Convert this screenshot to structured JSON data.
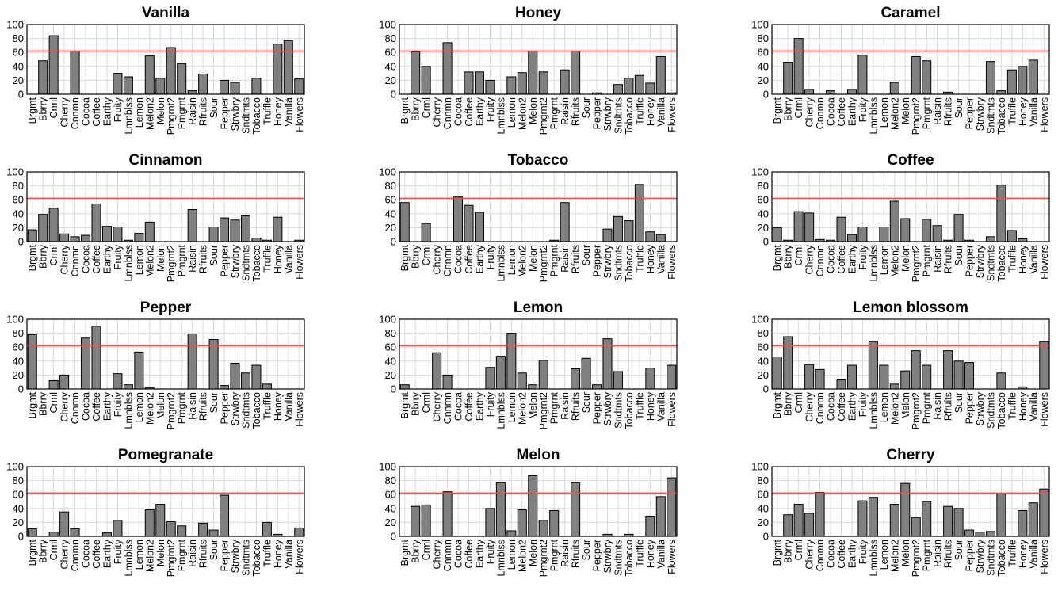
{
  "chart_data": {
    "type": "bar",
    "categories": [
      "Brgmt",
      "Bbrry",
      "Crml",
      "Cherry",
      "Cnnmn",
      "Cocoa",
      "Coffee",
      "Earthy",
      "Fruity",
      "Lmnblss",
      "Lemon",
      "Melon2",
      "Melon",
      "Pmgrnt2",
      "Pmgrnt",
      "Raisin",
      "Rfruits",
      "Sour",
      "Pepper",
      "Strwbry",
      "Sndtmts",
      "Tobacco",
      "Truffle",
      "Honey",
      "Vanilla",
      "Flowers"
    ],
    "ylim": [
      0,
      100
    ],
    "yticks": [
      0,
      20,
      40,
      60,
      80,
      100
    ],
    "threshold": 62,
    "colors": {
      "bar": "#808080",
      "threshold": "#ff4b4b",
      "grid": "#d9d9d9"
    },
    "panels": [
      {
        "title": "Vanilla",
        "categories": [
          "Brgmt",
          "Bbrry",
          "Crml",
          "Cherry",
          "Cnnmn",
          "Cocoa",
          "Coffee",
          "Earthy",
          "Fruity",
          "Lmnblss",
          "Lemon",
          "Melon2",
          "Melon",
          "Pmgrnt2",
          "Pmgrnt",
          "Raisin",
          "Rfruits",
          "Sour",
          "Pepper",
          "Strwbry",
          "Sndtmts",
          "Tobacco",
          "Truffle",
          "Honey",
          "Vanilla",
          "Flowers"
        ],
        "values": [
          0,
          48,
          84,
          0,
          62,
          0,
          0,
          0,
          30,
          25,
          0,
          55,
          23,
          67,
          44,
          5,
          29,
          0,
          20,
          17,
          0,
          23,
          0,
          72,
          77,
          22
        ]
      },
      {
        "title": "Honey",
        "categories": [
          "Brgmt",
          "Bbrry",
          "Crml",
          "Cherry",
          "Cnnmn",
          "Cocoa",
          "Coffee",
          "Earthy",
          "Fruity",
          "Lmnblss",
          "Lemon",
          "Melon2",
          "Melon",
          "Pmgrnt2",
          "Pmgrnt",
          "Raisin",
          "Rfruits",
          "Sour",
          "Pepper",
          "Strwbry",
          "Sndtmts",
          "Tobacco",
          "Truffle",
          "Honey",
          "Vanilla",
          "Flowers"
        ],
        "values": [
          0,
          61,
          40,
          0,
          74,
          0,
          32,
          32,
          20,
          0,
          25,
          31,
          62,
          32,
          0,
          35,
          62,
          0,
          2,
          0,
          14,
          23,
          27,
          16,
          54,
          2
        ]
      },
      {
        "title": "Caramel",
        "categories": [
          "Brgmt",
          "Bbrry",
          "Crml",
          "Cherry",
          "Cnnmn",
          "Cocoa",
          "Coffee",
          "Earthy",
          "Fruity",
          "Lmnblss",
          "Lemon",
          "Melon2",
          "Melon",
          "Pmgrnt2",
          "Pmgrnt",
          "Raisin",
          "Rfruits",
          "Sour",
          "Pepper",
          "Strwbry",
          "Sndtmts",
          "Tobacco",
          "Truffle",
          "Honey",
          "Vanilla",
          "Flowers"
        ],
        "values": [
          0,
          46,
          80,
          7,
          0,
          5,
          0,
          7,
          56,
          0,
          0,
          17,
          0,
          54,
          48,
          0,
          3,
          0,
          0,
          0,
          47,
          5,
          35,
          40,
          49,
          0
        ]
      },
      {
        "title": "Cinnamon",
        "categories": [
          "Brgmt",
          "Bbrry",
          "Crml",
          "Cherry",
          "Cnnmn",
          "Cocoa",
          "Coffee",
          "Earthy",
          "Fruity",
          "Lmnblss",
          "Lemon",
          "Melon2",
          "Melon",
          "Pmgrnt2",
          "Pmgrnt",
          "Raisin",
          "Rfruits",
          "Sour",
          "Pepper",
          "Strwbry",
          "Sndtmts",
          "Tobacco",
          "Truffle",
          "Honey",
          "Vanilla",
          "Flowers"
        ],
        "values": [
          17,
          39,
          48,
          11,
          7,
          9,
          54,
          22,
          21,
          2,
          12,
          28,
          0,
          0,
          0,
          46,
          0,
          21,
          34,
          31,
          37,
          5,
          2,
          35,
          0,
          2
        ]
      },
      {
        "title": "Tobacco",
        "categories": [
          "Brgmt",
          "Bbrry",
          "Crml",
          "Cherry",
          "Cnnmn",
          "Cocoa",
          "Coffee",
          "Earthy",
          "Fruity",
          "Lmnblss",
          "Lemon",
          "Melon2",
          "Melon",
          "Pmgrnt2",
          "Pmgrnt",
          "Raisin",
          "Rfruits",
          "Sour",
          "Pepper",
          "Strwbry",
          "Sndtmts",
          "Tobacco",
          "Truffle",
          "Honey",
          "Vanilla",
          "Flowers"
        ],
        "values": [
          56,
          0,
          26,
          0,
          0,
          64,
          52,
          42,
          0,
          0,
          0,
          0,
          0,
          0,
          2,
          56,
          0,
          0,
          0,
          18,
          36,
          30,
          82,
          14,
          10,
          0
        ]
      },
      {
        "title": "Coffee",
        "categories": [
          "Brgmt",
          "Bbrry",
          "Crml",
          "Cherry",
          "Cnnmn",
          "Cocoa",
          "Coffee",
          "Earthy",
          "Fruity",
          "Lmnblss",
          "Lemon",
          "Melon2",
          "Melon",
          "Pmgrnt2",
          "Pmgrnt",
          "Raisin",
          "Rfruits",
          "Sour",
          "Pepper",
          "Strwbry",
          "Sndtmts",
          "Tobacco",
          "Truffle",
          "Honey",
          "Vanilla",
          "Flowers"
        ],
        "values": [
          20,
          2,
          43,
          41,
          3,
          2,
          35,
          10,
          21,
          0,
          21,
          58,
          33,
          0,
          32,
          23,
          2,
          39,
          2,
          0,
          7,
          81,
          16,
          4,
          0,
          0
        ]
      },
      {
        "title": "Pepper",
        "categories": [
          "Brgmt",
          "Bbrry",
          "Crml",
          "Cherry",
          "Cnnmn",
          "Cocoa",
          "Coffee",
          "Earthy",
          "Fruity",
          "Lmnblss",
          "Lemon",
          "Melon2",
          "Melon",
          "Pmgrnt2",
          "Pmgrnt",
          "Raisin",
          "Rfruits",
          "Sour",
          "Pepper",
          "Strwbry",
          "Sndtmts",
          "Tobacco",
          "Truffle",
          "Honey",
          "Vanilla",
          "Flowers"
        ],
        "values": [
          78,
          0,
          12,
          20,
          0,
          73,
          90,
          0,
          22,
          6,
          53,
          2,
          0,
          0,
          0,
          79,
          0,
          71,
          5,
          37,
          23,
          34,
          7,
          0,
          0,
          0
        ]
      },
      {
        "title": "Lemon",
        "categories": [
          "Brgmt",
          "Bbrry",
          "Crml",
          "Cherry",
          "Cnnmn",
          "Cocoa",
          "Coffee",
          "Earthy",
          "Fruity",
          "Lmnblss",
          "Lemon",
          "Melon2",
          "Melon",
          "Pmgrnt2",
          "Pmgrnt",
          "Raisin",
          "Rfruits",
          "Sour",
          "Pepper",
          "Strwbry",
          "Sndtmts",
          "Tobacco",
          "Truffle",
          "Honey",
          "Vanilla",
          "Flowers"
        ],
        "values": [
          6,
          0,
          0,
          52,
          20,
          0,
          0,
          0,
          31,
          47,
          80,
          23,
          6,
          41,
          0,
          0,
          29,
          44,
          6,
          72,
          25,
          0,
          0,
          30,
          0,
          34
        ]
      },
      {
        "title": "Lemon blossom",
        "categories": [
          "Brgmt",
          "Bbrry",
          "Crml",
          "Cherry",
          "Cnnmn",
          "Cocoa",
          "Coffee",
          "Earthy",
          "Fruity",
          "Lmnblss",
          "Lemon",
          "Melon2",
          "Melon",
          "Pmgrnt2",
          "Pmgrnt",
          "Raisin",
          "Rfruits",
          "Sour",
          "Pepper",
          "Strwbry",
          "Sndtmts",
          "Tobacco",
          "Truffle",
          "Honey",
          "Vanilla",
          "Flowers"
        ],
        "values": [
          46,
          75,
          0,
          35,
          28,
          0,
          13,
          34,
          0,
          68,
          34,
          7,
          26,
          55,
          34,
          0,
          55,
          40,
          38,
          0,
          0,
          23,
          0,
          3,
          0,
          68
        ]
      },
      {
        "title": "Pomegranate",
        "categories": [
          "Brgmt",
          "Bbrry",
          "Crml",
          "Cherry",
          "Cnnmn",
          "Cocoa",
          "Coffee",
          "Earthy",
          "Fruity",
          "Lmnblss",
          "Lemon",
          "Melon2",
          "Melon",
          "Pmgrnt2",
          "Pmgrnt",
          "Raisin",
          "Rfruits",
          "Sour",
          "Pepper",
          "Strwbry",
          "Sndtmts",
          "Tobacco",
          "Truffle",
          "Honey",
          "Vanilla",
          "Flowers"
        ],
        "values": [
          11,
          0,
          6,
          35,
          11,
          0,
          0,
          5,
          23,
          0,
          0,
          38,
          46,
          21,
          15,
          0,
          19,
          9,
          59,
          0,
          0,
          0,
          20,
          3,
          0,
          12
        ]
      },
      {
        "title": "Melon",
        "categories": [
          "Brgmt",
          "Bbrry",
          "Crml",
          "Cherry",
          "Cnnmn",
          "Cocoa",
          "Coffee",
          "Earthy",
          "Fruity",
          "Lmnblss",
          "Lemon",
          "Melon2",
          "Melon",
          "Pmgrnt2",
          "Pmgrnt",
          "Raisin",
          "Rfruits",
          "Sour",
          "Pepper",
          "Strwbry",
          "Sndtmts",
          "Tobacco",
          "Truffle",
          "Honey",
          "Vanilla",
          "Flowers"
        ],
        "values": [
          0,
          43,
          45,
          0,
          64,
          0,
          0,
          0,
          40,
          77,
          8,
          38,
          87,
          23,
          37,
          0,
          77,
          0,
          0,
          3,
          0,
          3,
          0,
          29,
          57,
          84
        ]
      },
      {
        "title": "Cherry",
        "categories": [
          "Brgmt",
          "Bbrry",
          "Crml",
          "Cherry",
          "Cnnmn",
          "Cocoa",
          "Coffee",
          "Earthy",
          "Fruity",
          "Lmnblss",
          "Lemon",
          "Melon2",
          "Melon",
          "Pmgrnt2",
          "Pmgrnt",
          "Raisin",
          "Rfruits",
          "Sour",
          "Pepper",
          "Strwbry",
          "Sndtmts",
          "Tobacco",
          "Truffle",
          "Honey",
          "Vanilla",
          "Flowers"
        ],
        "values": [
          0,
          31,
          46,
          33,
          63,
          0,
          0,
          0,
          51,
          56,
          0,
          46,
          76,
          27,
          50,
          0,
          43,
          40,
          9,
          6,
          7,
          62,
          0,
          37,
          48,
          68
        ]
      }
    ]
  }
}
